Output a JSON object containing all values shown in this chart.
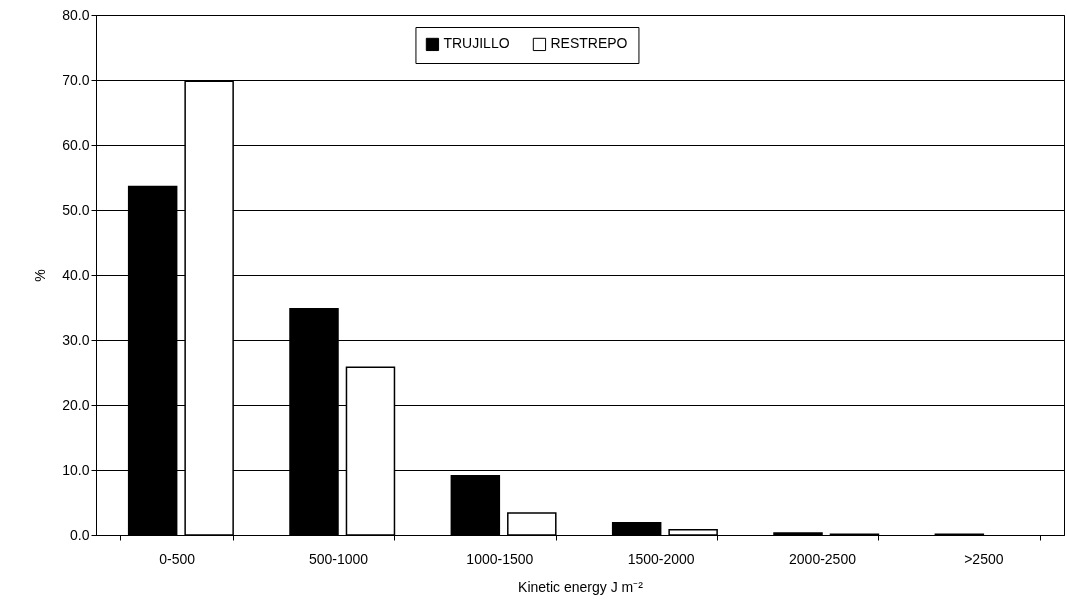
{
  "chart_data": {
    "type": "bar",
    "xlabel": "Kinetic energy J m⁻²",
    "ylabel": "%",
    "categories": [
      "0-500",
      "500-1000",
      "1000-1500",
      "1500-2000",
      "2000-2500",
      ">2500"
    ],
    "series": [
      {
        "name": "TRUJILLO",
        "color": "#000000",
        "values": [
          53.6,
          34.8,
          9.1,
          1.9,
          0.3,
          0.1
        ]
      },
      {
        "name": "RESTREPO",
        "color": "#ffffff",
        "values": [
          69.8,
          25.8,
          3.4,
          0.8,
          0.1,
          null
        ]
      }
    ],
    "ylim": [
      0,
      80
    ],
    "yticks": [
      {
        "value": 0,
        "label": "0.0"
      },
      {
        "value": 10,
        "label": "10.0"
      },
      {
        "value": 20,
        "label": "20.0"
      },
      {
        "value": 30,
        "label": "30.0"
      },
      {
        "value": 40,
        "label": "40.0"
      },
      {
        "value": 50,
        "label": "50.0"
      },
      {
        "value": 60,
        "label": "60.0"
      },
      {
        "value": 70,
        "label": "70.0"
      },
      {
        "value": 80,
        "label": "80.0"
      }
    ],
    "grid": "y",
    "legend": "top"
  }
}
